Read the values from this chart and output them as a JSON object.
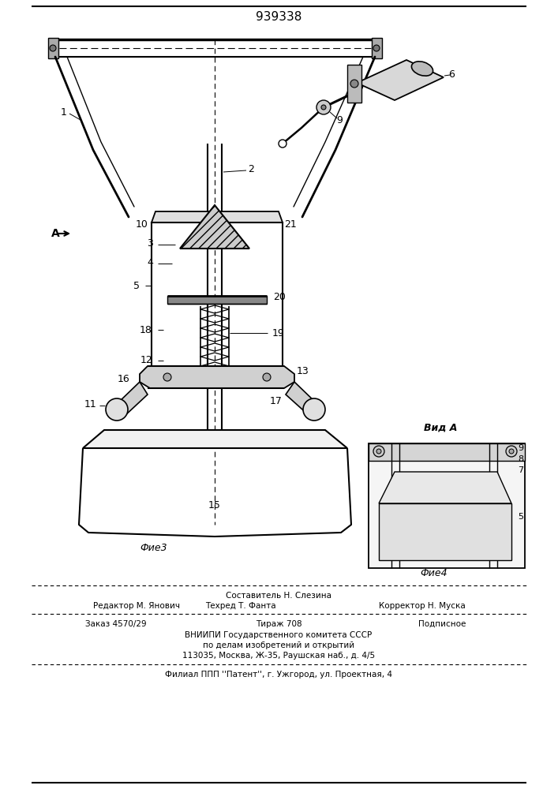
{
  "title": "939338",
  "title_fontsize": 11,
  "fig3_label": "Фие3",
  "fig4_label": "Фие4",
  "view_a_label": "Вид A",
  "background_color": "#ffffff",
  "line_color": "#000000",
  "footer_row1_center": "Составитель Н. Слезина",
  "footer_row2_left": "Редактор М. Янович",
  "footer_row2_center": "Техред Т. Фанта",
  "footer_row2_right": "Корректор Н. Муска",
  "footer_row3_left": "Заказ 4570/29",
  "footer_row3_center": "Тираж 708",
  "footer_row3_right": "Подписное",
  "footer_vniip1": "ВНИИПИ Государственного комитета СССР",
  "footer_vniip2": "по делам изобретений и открытий",
  "footer_vniip3": "113035, Москва, Ж-35, Раушская наб., д. 4/5",
  "footer_filial": "Филиал ППП ''Патент'', г. Ужгород, ул. Проектная, 4"
}
